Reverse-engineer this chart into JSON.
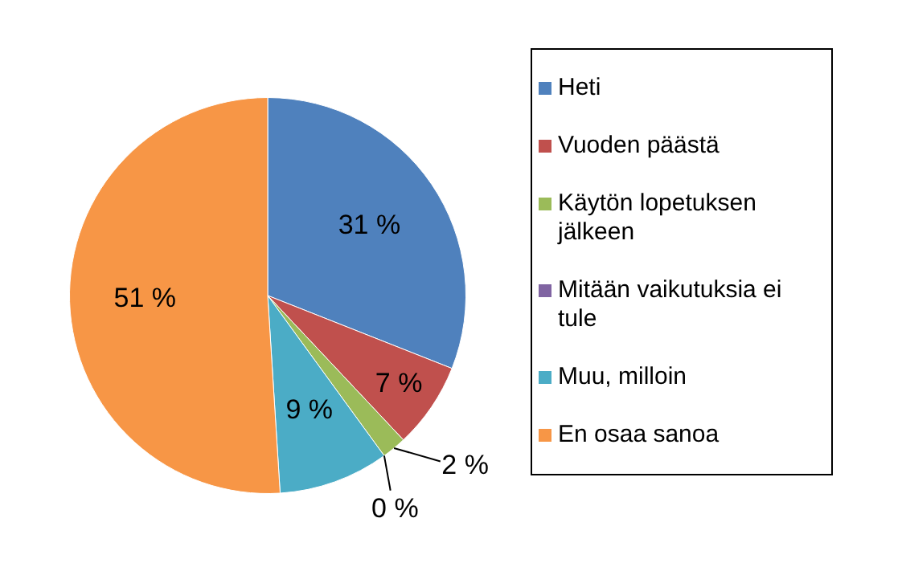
{
  "chart_data": {
    "type": "pie",
    "categories": [
      "Heti",
      "Vuoden päästä",
      "Käytön lopetuksen jälkeen",
      "Mitään vaikutuksia ei tule",
      "Muu, milloin",
      "En osaa sanoa"
    ],
    "values": [
      31,
      7,
      2,
      0,
      9,
      51
    ],
    "colors": [
      "#4f81bd",
      "#c0504d",
      "#9bbb59",
      "#8064a2",
      "#4bacc6",
      "#f79646"
    ],
    "value_labels": [
      "31 %",
      "7 %",
      "2 %",
      "0 %",
      "9 %",
      "51 %"
    ],
    "legend": "right"
  }
}
